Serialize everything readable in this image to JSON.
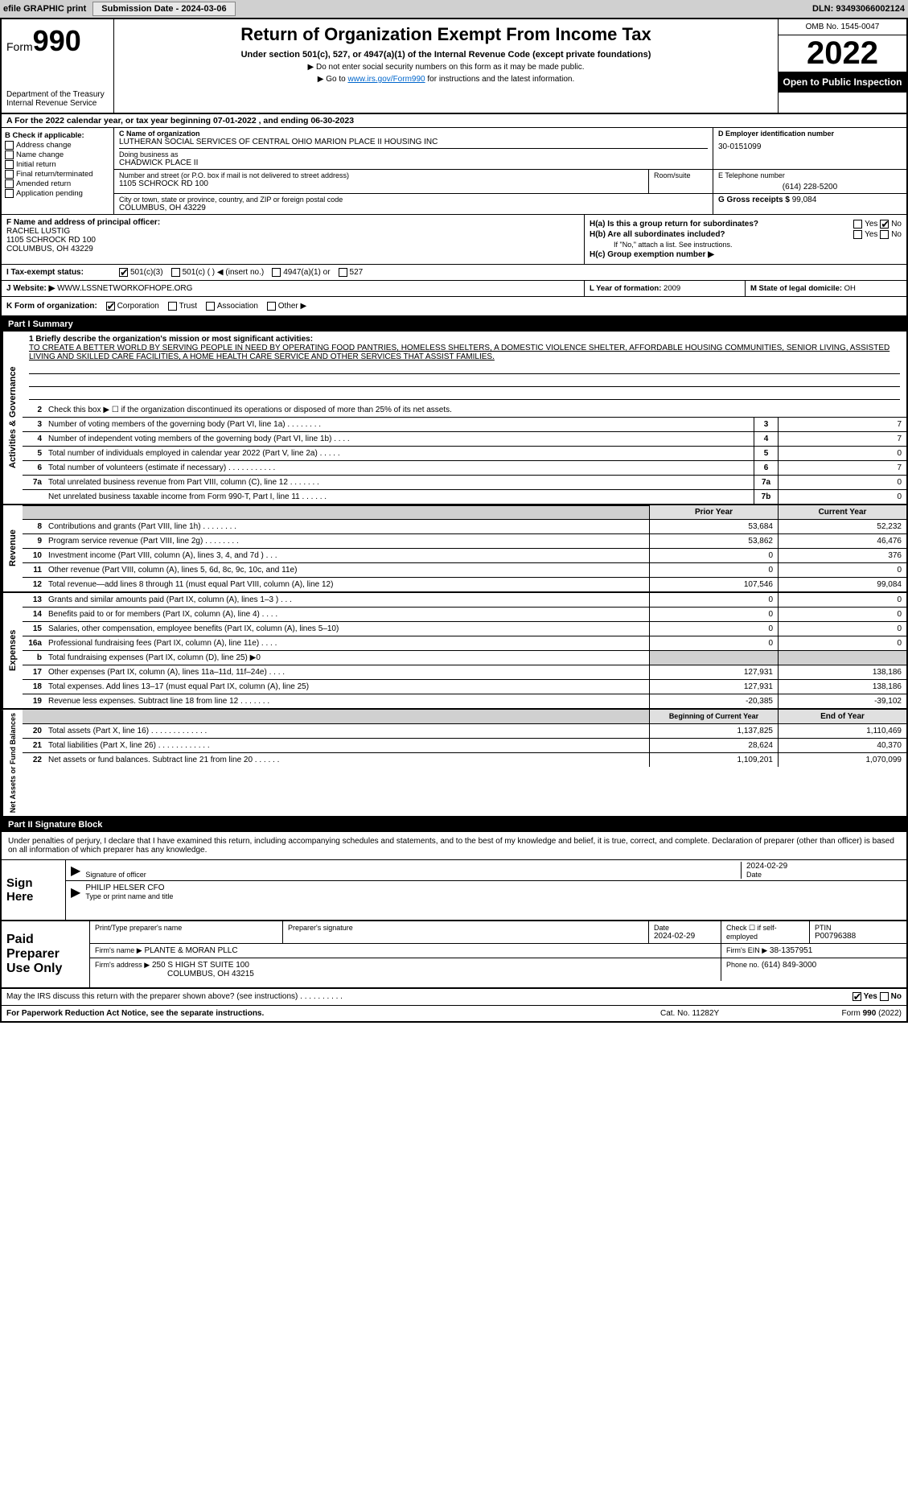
{
  "topbar": {
    "efile": "efile GRAPHIC print",
    "submission": "Submission Date - 2024-03-06",
    "dln": "DLN: 93493066002124"
  },
  "header": {
    "form_prefix": "Form",
    "form_num": "990",
    "title": "Return of Organization Exempt From Income Tax",
    "sub": "Under section 501(c), 527, or 4947(a)(1) of the Internal Revenue Code (except private foundations)",
    "note1": "▶ Do not enter social security numbers on this form as it may be made public.",
    "note2_pre": "▶ Go to ",
    "note2_link": "www.irs.gov/Form990",
    "note2_post": " for instructions and the latest information.",
    "dept": "Department of the Treasury\nInternal Revenue Service",
    "omb": "OMB No. 1545-0047",
    "year": "2022",
    "open": "Open to Public Inspection"
  },
  "cal": "A  For the 2022 calendar year, or tax year beginning 07-01-2022    , and ending 06-30-2023",
  "checkboxes": {
    "title": "B Check if applicable:",
    "items": [
      "Address change",
      "Name change",
      "Initial return",
      "Final return/terminated",
      "Amended return",
      "Application pending"
    ]
  },
  "org": {
    "c_lbl": "C Name of organization",
    "name": "LUTHERAN SOCIAL SERVICES OF CENTRAL OHIO MARION PLACE II HOUSING INC",
    "dba_lbl": "Doing business as",
    "dba": "CHADWICK PLACE II",
    "addr_lbl": "Number and street (or P.O. box if mail is not delivered to street address)",
    "addr": "1105 SCHROCK RD 100",
    "room_lbl": "Room/suite",
    "city_lbl": "City or town, state or province, country, and ZIP or foreign postal code",
    "city": "COLUMBUS, OH  43229",
    "d_lbl": "D Employer identification number",
    "ein": "30-0151099",
    "e_lbl": "E Telephone number",
    "phone": "(614) 228-5200",
    "g_lbl": "G Gross receipts $",
    "gross": "99,084"
  },
  "fh": {
    "f_lbl": "F Name and address of principal officer:",
    "f_name": "RACHEL LUSTIG",
    "f_addr1": "1105 SCHROCK RD 100",
    "f_addr2": "COLUMBUS, OH  43229",
    "ha": "H(a)  Is this a group return for subordinates?",
    "hb": "H(b)  Are all subordinates included?",
    "hb_note": "If \"No,\" attach a list. See instructions.",
    "hc": "H(c)  Group exemption number ▶",
    "yes": "Yes",
    "no": "No"
  },
  "tax": {
    "i_lbl": "I    Tax-exempt status:",
    "opts": [
      "501(c)(3)",
      "501(c) (  ) ◀ (insert no.)",
      "4947(a)(1) or",
      "527"
    ]
  },
  "website": {
    "j_lbl": "J   Website: ▶",
    "url": "WWW.LSSNETWORKOFHOPE.ORG",
    "l_lbl": "L Year of formation:",
    "l_val": "2009",
    "m_lbl": "M State of legal domicile:",
    "m_val": "OH"
  },
  "k": {
    "lbl": "K Form of organization:",
    "opts": [
      "Corporation",
      "Trust",
      "Association",
      "Other ▶"
    ]
  },
  "parts": {
    "p1": "Part I      Summary",
    "p2": "Part II     Signature Block"
  },
  "mission": {
    "lbl": "1  Briefly describe the organization's mission or most significant activities:",
    "text": "TO CREATE A BETTER WORLD BY SERVING PEOPLE IN NEED BY OPERATING FOOD PANTRIES, HOMELESS SHELTERS, A DOMESTIC VIOLENCE SHELTER, AFFORDABLE HOUSING COMMUNITIES, SENIOR LIVING, ASSISTED LIVING AND SKILLED CARE FACILITIES, A HOME HEALTH CARE SERVICE AND OTHER SERVICES THAT ASSIST FAMILIES."
  },
  "gov_rows": [
    {
      "n": "2",
      "t": "Check this box ▶ ☐  if the organization discontinued its operations or disposed of more than 25% of its net assets."
    },
    {
      "n": "3",
      "t": "Number of voting members of the governing body (Part VI, line 1a)   .    .    .    .    .    .    .    .",
      "cn": "3",
      "v": "7"
    },
    {
      "n": "4",
      "t": "Number of independent voting members of the governing body (Part VI, line 1b)   .    .    .    .",
      "cn": "4",
      "v": "7"
    },
    {
      "n": "5",
      "t": "Total number of individuals employed in calendar year 2022 (Part V, line 2a)   .    .    .    .    .",
      "cn": "5",
      "v": "0"
    },
    {
      "n": "6",
      "t": "Total number of volunteers (estimate if necessary)   .    .    .    .    .    .    .    .    .    .    .",
      "cn": "6",
      "v": "7"
    },
    {
      "n": "7a",
      "t": "Total unrelated business revenue from Part VIII, column (C), line 12   .    .    .    .    .    .    .",
      "cn": "7a",
      "v": "0"
    },
    {
      "n": "",
      "t": "Net unrelated business taxable income from Form 990-T, Part I, line 11   .    .    .    .    .    .",
      "cn": "7b",
      "v": "0"
    }
  ],
  "yrhdr": {
    "py": "Prior Year",
    "cy": "Current Year"
  },
  "rev_rows": [
    {
      "n": "8",
      "t": "Contributions and grants (Part VIII, line 1h)   .    .    .    .    .    .    .    .",
      "py": "53,684",
      "cy": "52,232"
    },
    {
      "n": "9",
      "t": "Program service revenue (Part VIII, line 2g)   .    .    .    .    .    .    .    .",
      "py": "53,862",
      "cy": "46,476"
    },
    {
      "n": "10",
      "t": "Investment income (Part VIII, column (A), lines 3, 4, and 7d )   .    .    .",
      "py": "0",
      "cy": "376"
    },
    {
      "n": "11",
      "t": "Other revenue (Part VIII, column (A), lines 5, 6d, 8c, 9c, 10c, and 11e)",
      "py": "0",
      "cy": "0"
    },
    {
      "n": "12",
      "t": "Total revenue—add lines 8 through 11 (must equal Part VIII, column (A), line 12)",
      "py": "107,546",
      "cy": "99,084"
    }
  ],
  "exp_rows": [
    {
      "n": "13",
      "t": "Grants and similar amounts paid (Part IX, column (A), lines 1–3 ) .    .    .",
      "py": "0",
      "cy": "0"
    },
    {
      "n": "14",
      "t": "Benefits paid to or for members (Part IX, column (A), line 4)   .    .    .    .",
      "py": "0",
      "cy": "0"
    },
    {
      "n": "15",
      "t": "Salaries, other compensation, employee benefits (Part IX, column (A), lines 5–10)",
      "py": "0",
      "cy": "0"
    },
    {
      "n": "16a",
      "t": "Professional fundraising fees (Part IX, column (A), line 11e)   .    .    .    .",
      "py": "0",
      "cy": "0"
    },
    {
      "n": "b",
      "t": "Total fundraising expenses (Part IX, column (D), line 25) ▶0",
      "py": "",
      "cy": "",
      "gray": true
    },
    {
      "n": "17",
      "t": "Other expenses (Part IX, column (A), lines 11a–11d, 11f–24e)   .    .    .    .",
      "py": "127,931",
      "cy": "138,186"
    },
    {
      "n": "18",
      "t": "Total expenses. Add lines 13–17 (must equal Part IX, column (A), line 25)",
      "py": "127,931",
      "cy": "138,186"
    },
    {
      "n": "19",
      "t": "Revenue less expenses. Subtract line 18 from line 12 .    .    .    .    .    .    .",
      "py": "-20,385",
      "cy": "-39,102"
    }
  ],
  "net_hdr": {
    "py": "Beginning of Current Year",
    "cy": "End of Year"
  },
  "net_rows": [
    {
      "n": "20",
      "t": "Total assets (Part X, line 16)   .    .    .    .    .    .    .    .    .    .    .    .    .",
      "py": "1,137,825",
      "cy": "1,110,469"
    },
    {
      "n": "21",
      "t": "Total liabilities (Part X, line 26)   .    .    .    .    .    .    .    .    .    .    .    .",
      "py": "28,624",
      "cy": "40,370"
    },
    {
      "n": "22",
      "t": "Net assets or fund balances. Subtract line 21 from line 20 .    .    .    .    .    .",
      "py": "1,109,201",
      "cy": "1,070,099"
    }
  ],
  "side_labels": {
    "gov": "Activities & Governance",
    "rev": "Revenue",
    "exp": "Expenses",
    "net": "Net Assets or Fund Balances"
  },
  "sig": {
    "intro": "Under penalties of perjury, I declare that I have examined this return, including accompanying schedules and statements, and to the best of my knowledge and belief, it is true, correct, and complete. Declaration of preparer (other than officer) is based on all information of which preparer has any knowledge.",
    "sign_here": "Sign Here",
    "sig_officer": "Signature of officer",
    "date": "Date",
    "date_val": "2024-02-29",
    "name": "PHILIP HELSER  CFO",
    "name_lbl": "Type or print name and title"
  },
  "paid": {
    "lbl": "Paid Preparer Use Only",
    "h1": "Print/Type preparer's name",
    "h2": "Preparer's signature",
    "h3": "Date",
    "h3v": "2024-02-29",
    "h4": "Check ☐ if self-employed",
    "h5": "PTIN",
    "h5v": "P00796388",
    "firm_lbl": "Firm's name    ▶",
    "firm": "PLANTE & MORAN PLLC",
    "ein_lbl": "Firm's EIN ▶",
    "ein": "38-1357951",
    "addr_lbl": "Firm's address ▶",
    "addr1": "250 S HIGH ST SUITE 100",
    "addr2": "COLUMBUS, OH  43215",
    "phone_lbl": "Phone no.",
    "phone": "(614) 849-3000"
  },
  "may": {
    "txt": "May the IRS discuss this return with the preparer shown above? (see instructions)   .    .    .    .    .    .    .    .    .    .",
    "yes": "Yes",
    "no": "No"
  },
  "footer": {
    "l": "For Paperwork Reduction Act Notice, see the separate instructions.",
    "c": "Cat. No. 11282Y",
    "r": "Form 990 (2022)"
  }
}
